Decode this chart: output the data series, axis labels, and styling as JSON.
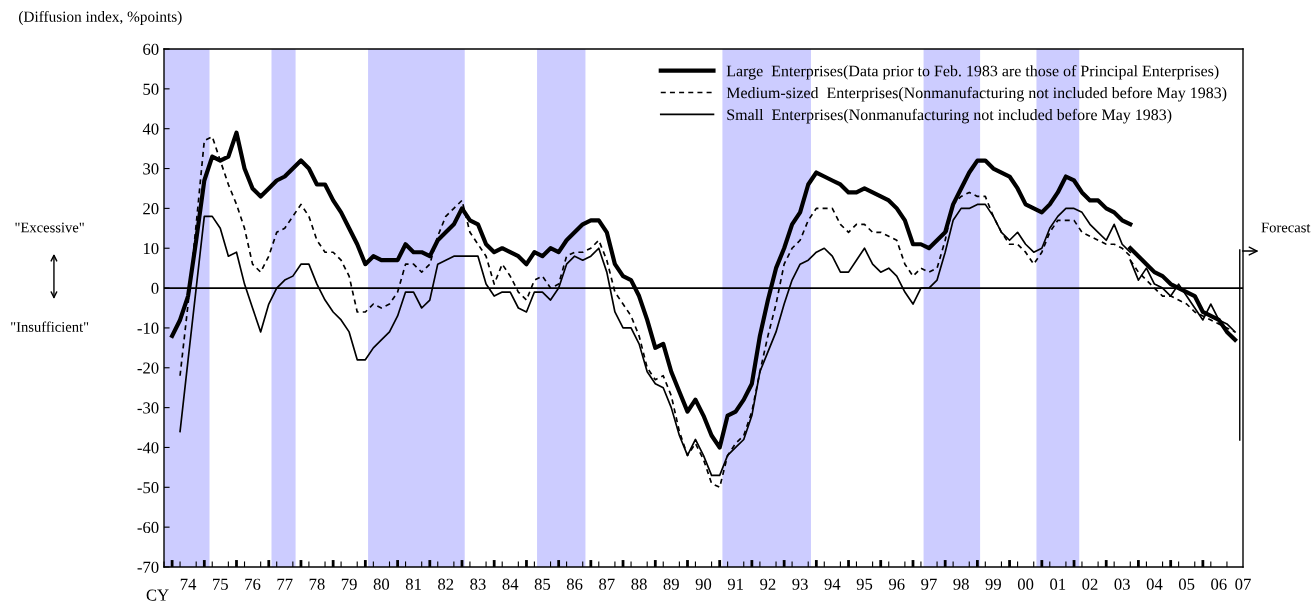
{
  "chart_data": {
    "type": "line",
    "xlabel": "CY",
    "ylabel": "(Diffusion index, %points)",
    "x": [
      "1974-01",
      "1974-04",
      "1974-07",
      "1974-10",
      "1975-01",
      "1975-04",
      "1975-07",
      "1975-10",
      "1976-01",
      "1976-04",
      "1976-07",
      "1976-10",
      "1977-01",
      "1977-04",
      "1977-07",
      "1977-10",
      "1978-01",
      "1978-04",
      "1978-07",
      "1978-10",
      "1979-01",
      "1979-04",
      "1979-07",
      "1979-10",
      "1980-01",
      "1980-04",
      "1980-07",
      "1980-10",
      "1981-01",
      "1981-04",
      "1981-07",
      "1981-10",
      "1982-01",
      "1982-04",
      "1982-07",
      "1982-10",
      "1983-01",
      "1983-04",
      "1983-07",
      "1983-10",
      "1984-01",
      "1984-04",
      "1984-07",
      "1984-10",
      "1985-01",
      "1985-04",
      "1985-07",
      "1985-10",
      "1986-01",
      "1986-04",
      "1986-07",
      "1986-10",
      "1987-01",
      "1987-04",
      "1987-07",
      "1987-10",
      "1988-01",
      "1988-04",
      "1988-07",
      "1988-10",
      "1989-01",
      "1989-04",
      "1989-07",
      "1989-10",
      "1990-01",
      "1990-04",
      "1990-07",
      "1990-10",
      "1991-01",
      "1991-04",
      "1991-07",
      "1991-10",
      "1992-01",
      "1992-04",
      "1992-07",
      "1992-10",
      "1993-01",
      "1993-04",
      "1993-07",
      "1993-10",
      "1994-01",
      "1994-04",
      "1994-07",
      "1994-10",
      "1995-01",
      "1995-04",
      "1995-07",
      "1995-10",
      "1996-01",
      "1996-04",
      "1996-07",
      "1996-10",
      "1997-01",
      "1997-04",
      "1997-07",
      "1997-10",
      "1998-01",
      "1998-04",
      "1998-07",
      "1998-10",
      "1999-01",
      "1999-04",
      "1999-07",
      "1999-10",
      "2000-01",
      "2000-04",
      "2000-07",
      "2000-10",
      "2001-01",
      "2001-04",
      "2001-07",
      "2001-10",
      "2002-01",
      "2002-04",
      "2002-07",
      "2002-10",
      "2003-01",
      "2003-04",
      "2003-07",
      "2003-10"
    ],
    "series": [
      {
        "name": "Large  Enterprises(Data prior to Feb. 1983 are those of Principal Enterprises)",
        "color": "#000000",
        "line_style": "solid",
        "values": [
          -12,
          -8,
          -2,
          12,
          27,
          33,
          32,
          33,
          39,
          30,
          25,
          23,
          25,
          27,
          28,
          30,
          32,
          30,
          26,
          26,
          22,
          19,
          15,
          11,
          6,
          8,
          7,
          7,
          7,
          11,
          9,
          9,
          8,
          12,
          14,
          16,
          20,
          17,
          16,
          11,
          9,
          10,
          9,
          8,
          6,
          9,
          8,
          10,
          9,
          12,
          14,
          16,
          17,
          17,
          14,
          6,
          3,
          2,
          -2,
          -8,
          -15,
          -14,
          -21,
          -26,
          -31,
          -28,
          -32,
          -37,
          -40,
          -32,
          -31,
          -28,
          -24,
          -12,
          -3,
          5,
          10,
          16,
          19,
          26,
          29,
          28,
          27,
          26,
          24,
          24,
          25,
          24,
          23,
          22,
          20,
          17,
          11,
          11,
          10,
          12,
          14,
          21,
          25,
          29,
          32,
          32,
          30,
          29,
          28,
          25,
          21,
          20,
          19,
          21,
          24,
          28,
          27,
          24,
          22,
          22,
          20,
          19,
          17,
          16
        ]
      },
      {
        "name": "Medium-sized  Enterprises(Nonmanufacturing not included before May 1983)",
        "color": "#000000",
        "line_style": "dashed",
        "values": [
          null,
          -22,
          -4,
          16,
          37,
          38,
          32,
          26,
          21,
          15,
          6,
          4,
          8,
          14,
          15,
          18,
          21,
          18,
          12,
          9,
          9,
          7,
          3,
          -6,
          -6,
          -4,
          -5,
          -4,
          -1,
          6,
          6,
          4,
          6,
          13,
          18,
          20,
          22,
          14,
          11,
          8,
          1,
          6,
          3,
          -1,
          -3,
          2,
          3,
          0,
          1,
          8,
          9,
          9,
          10,
          12,
          7,
          -1,
          -4,
          -7,
          -12,
          -20,
          -23,
          -22,
          -27,
          -36,
          -42,
          -39,
          -43,
          -49,
          -50,
          -42,
          -39,
          -37,
          -31,
          -21,
          -12,
          -4,
          6,
          10,
          12,
          17,
          20,
          20,
          20,
          16,
          14,
          16,
          16,
          14,
          14,
          13,
          12,
          6,
          3,
          5,
          4,
          5,
          12,
          21,
          23,
          24,
          23,
          23,
          18,
          14,
          11,
          11,
          9,
          6,
          9,
          14,
          17,
          17,
          17,
          14,
          13,
          12,
          11,
          11,
          10,
          8
        ]
      },
      {
        "name": "Small  Enterprises(Nonmanufacturing not included before May 1983)",
        "color": "#000000",
        "line_style": "solid",
        "values": [
          null,
          -36,
          -18,
          0,
          18,
          18,
          15,
          8,
          9,
          1,
          -5,
          -11,
          -4,
          0,
          2,
          3,
          6,
          6,
          1,
          -3,
          -6,
          -8,
          -11,
          -18,
          -18,
          -15,
          -13,
          -11,
          -7,
          -1,
          -1,
          -5,
          -3,
          6,
          7,
          8,
          8,
          8,
          8,
          1,
          -2,
          -1,
          -1,
          -5,
          -6,
          -1,
          -1,
          -3,
          0,
          6,
          8,
          7,
          8,
          10,
          4,
          -6,
          -10,
          -10,
          -14,
          -21,
          -24,
          -25,
          -30,
          -37,
          -42,
          -38,
          -42,
          -47,
          -47,
          -42,
          -40,
          -38,
          -32,
          -21,
          -16,
          -11,
          -4,
          2,
          6,
          7,
          9,
          10,
          8,
          4,
          4,
          7,
          10,
          6,
          4,
          5,
          3,
          -1,
          -4,
          0,
          0,
          2,
          9,
          17,
          20,
          20,
          21,
          21,
          18,
          14,
          12,
          14,
          11,
          9,
          10,
          15,
          18,
          20,
          20,
          19,
          16,
          14,
          12,
          16,
          11,
          9
        ]
      },
      {
        "color": "#000000",
        "line_style": "solid",
        "x": [
          "2003-10",
          "2004-01",
          "2004-04",
          "2004-07",
          "2004-10",
          "2005-01",
          "2005-04",
          "2005-07",
          "2005-10",
          "2006-01",
          "2006-04",
          "2006-07",
          "2006-10",
          "2007-01"
        ],
        "values": [
          10,
          8,
          6,
          4,
          3,
          1,
          0,
          -1,
          -2,
          -6,
          -7,
          -8,
          -11,
          -13
        ]
      },
      {
        "color": "#000000",
        "line_style": "dashed",
        "x": [
          "2003-10",
          "2004-01",
          "2004-04",
          "2004-07",
          "2004-10",
          "2005-01",
          "2005-04",
          "2005-07",
          "2005-10",
          "2006-01",
          "2006-04",
          "2006-07",
          "2006-10",
          "2007-01"
        ],
        "values": [
          7,
          4,
          2,
          0,
          -2,
          -2,
          -3,
          -4,
          -6,
          -7,
          -8,
          -9,
          -10,
          -11
        ]
      },
      {
        "color": "#000000",
        "line_style": "solid",
        "x": [
          "2003-10",
          "2004-01",
          "2004-04",
          "2004-07",
          "2004-10",
          "2005-01",
          "2005-04",
          "2005-07",
          "2005-10",
          "2006-01",
          "2006-04",
          "2006-07",
          "2006-10",
          "2007-01"
        ],
        "values": [
          7,
          2,
          5,
          1,
          0,
          -2,
          1,
          -2,
          -5,
          -8,
          -4,
          -8,
          -9,
          -11
        ]
      }
    ],
    "xlim": [
      "1973-10",
      "2007-04"
    ],
    "xticks": [
      {
        "value": "1974",
        "label": null
      },
      {
        "value": "1974-07",
        "label": "74"
      },
      {
        "value": "1975",
        "label": null
      },
      {
        "value": "1975-07",
        "label": "75"
      },
      {
        "value": "1976",
        "label": null
      },
      {
        "value": "1976-07",
        "label": "76"
      },
      {
        "value": "1977",
        "label": null
      },
      {
        "value": "1977-07",
        "label": "77"
      },
      {
        "value": "1978",
        "label": null
      },
      {
        "value": "1978-07",
        "label": "78"
      },
      {
        "value": "1979",
        "label": null
      },
      {
        "value": "1979-07",
        "label": "79"
      },
      {
        "value": "1980",
        "label": null
      },
      {
        "value": "1980-07",
        "label": "80"
      },
      {
        "value": "1981",
        "label": null
      },
      {
        "value": "1981-07",
        "label": "81"
      },
      {
        "value": "1982",
        "label": null
      },
      {
        "value": "1982-07",
        "label": "82"
      },
      {
        "value": "1983",
        "label": null
      },
      {
        "value": "1983-07",
        "label": "83"
      },
      {
        "value": "1984",
        "label": null
      },
      {
        "value": "1984-07",
        "label": "84"
      },
      {
        "value": "1985",
        "label": null
      },
      {
        "value": "1985-07",
        "label": "85"
      },
      {
        "value": "1986",
        "label": null
      },
      {
        "value": "1986-07",
        "label": "86"
      },
      {
        "value": "1987",
        "label": null
      },
      {
        "value": "1987-07",
        "label": "87"
      },
      {
        "value": "1988",
        "label": null
      },
      {
        "value": "1988-07",
        "label": "88"
      },
      {
        "value": "1989",
        "label": null
      },
      {
        "value": "1989-07",
        "label": "89"
      },
      {
        "value": "1990",
        "label": null
      },
      {
        "value": "1990-07",
        "label": "90"
      },
      {
        "value": "1991",
        "label": null
      },
      {
        "value": "1991-07",
        "label": "91"
      },
      {
        "value": "1992",
        "label": null
      },
      {
        "value": "1992-07",
        "label": "92"
      },
      {
        "value": "1993",
        "label": null
      },
      {
        "value": "1993-07",
        "label": "93"
      },
      {
        "value": "1994",
        "label": null
      },
      {
        "value": "1994-07",
        "label": "94"
      },
      {
        "value": "1995",
        "label": null
      },
      {
        "value": "1995-07",
        "label": "95"
      },
      {
        "value": "1996",
        "label": null
      },
      {
        "value": "1996-07",
        "label": "96"
      },
      {
        "value": "1997",
        "label": null
      },
      {
        "value": "1997-07",
        "label": "97"
      },
      {
        "value": "1998",
        "label": null
      },
      {
        "value": "1998-07",
        "label": "98"
      },
      {
        "value": "1999",
        "label": null
      },
      {
        "value": "1999-07",
        "label": "99"
      },
      {
        "value": "2000",
        "label": null
      },
      {
        "value": "2000-07",
        "label": "00"
      },
      {
        "value": "2001",
        "label": null
      },
      {
        "value": "2001-07",
        "label": "01"
      },
      {
        "value": "2002",
        "label": null
      },
      {
        "value": "2002-07",
        "label": "02"
      },
      {
        "value": "2003",
        "label": null
      },
      {
        "value": "2003-07",
        "label": "03"
      },
      {
        "value": "2004",
        "label": null
      },
      {
        "value": "2004-07",
        "label": "04"
      },
      {
        "value": "2005",
        "label": null
      },
      {
        "value": "2005-07",
        "label": "05"
      },
      {
        "value": "2006",
        "label": null
      },
      {
        "value": "2006-07",
        "label": "06"
      },
      {
        "value": "2007-04",
        "label": "07"
      }
    ],
    "ylim": [
      -70,
      60
    ],
    "yticks": [
      -70,
      -60,
      -50,
      -40,
      -30,
      -20,
      -10,
      0,
      10,
      20,
      30,
      40,
      50,
      60
    ],
    "ref_lines": [
      {
        "axis": "y",
        "value": 0,
        "color": "#000000"
      }
    ],
    "bands": [
      {
        "axis": "x",
        "from": "1973-10",
        "to": "1975-03",
        "color": "#ccccff"
      },
      {
        "axis": "x",
        "from": "1977-02",
        "to": "1977-11",
        "color": "#ccccff"
      },
      {
        "axis": "x",
        "from": "1980-02",
        "to": "1983-02",
        "color": "#ccccff"
      },
      {
        "axis": "x",
        "from": "1985-05",
        "to": "1986-11",
        "color": "#ccccff"
      },
      {
        "axis": "x",
        "from": "1991-02",
        "to": "1993-11",
        "color": "#ccccff"
      },
      {
        "axis": "x",
        "from": "1997-05",
        "to": "1999-02",
        "color": "#ccccff"
      },
      {
        "axis": "x",
        "from": "2000-11",
        "to": "2002-03",
        "color": "#ccccff"
      }
    ],
    "annotations": [
      "\"Excessive\"",
      "\"Insufficient\"",
      "Forecast"
    ],
    "legend": "top right",
    "marker": "none"
  }
}
